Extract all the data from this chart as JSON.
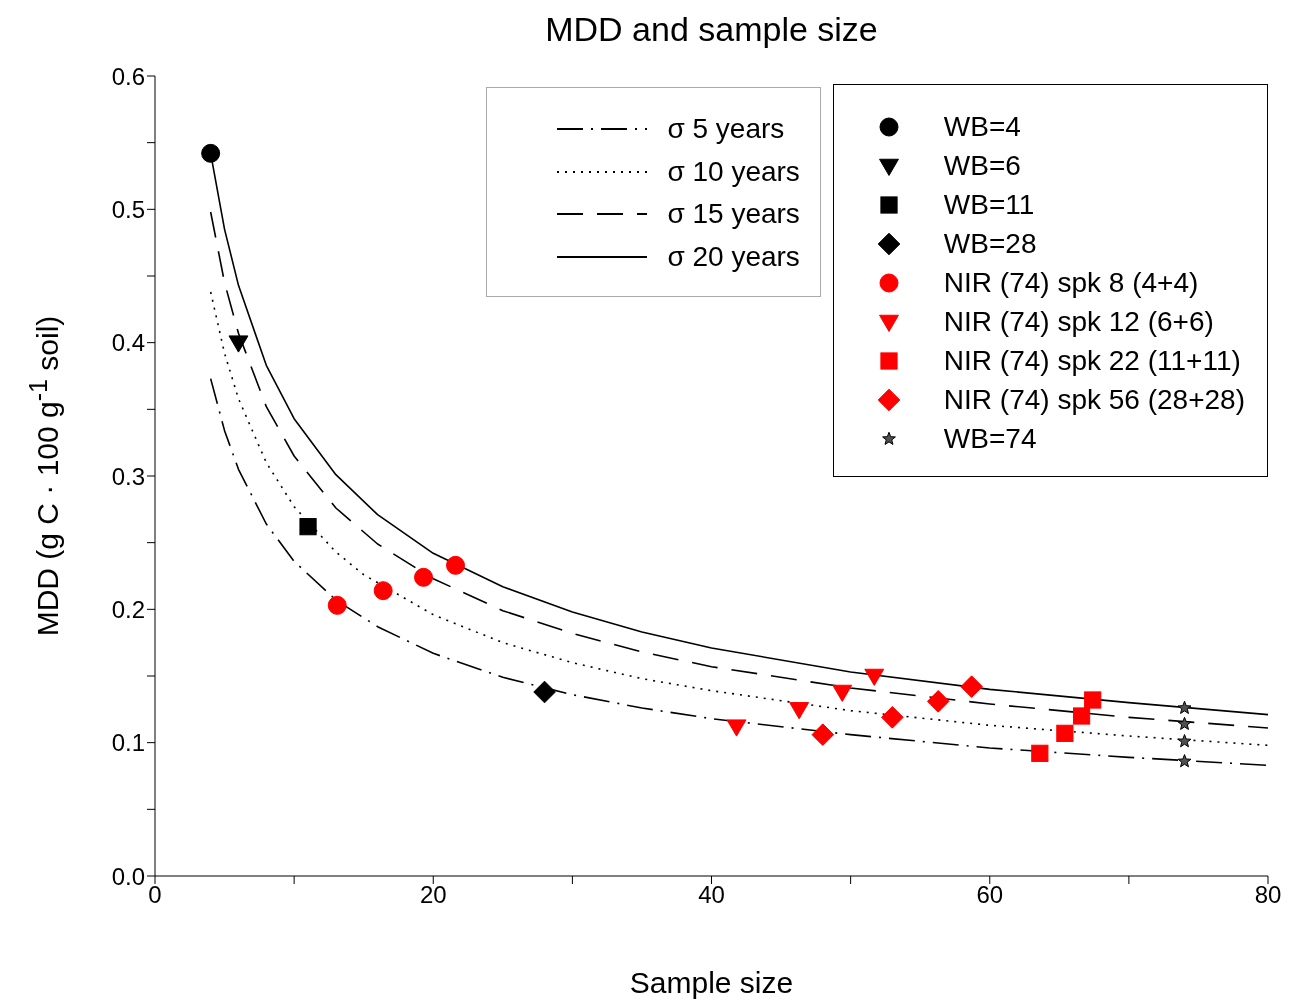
{
  "chart_data": {
    "type": "scatter",
    "title": "MDD and sample size",
    "xlabel": "Sample size",
    "ylabel": "MDD (g C · 100 g$^{-1}$ soil)",
    "xlim": [
      0,
      80
    ],
    "xticks": [
      0,
      {
        "value": 10,
        "label": null
      },
      20,
      {
        "value": 30,
        "label": null
      },
      40,
      {
        "value": 50,
        "label": null
      },
      60,
      {
        "value": 70,
        "label": null
      },
      80
    ],
    "ylim": [
      0,
      0.6
    ],
    "yticks": [
      {
        "value": 0,
        "label": "0.0"
      },
      {
        "value": 0.05,
        "label": null
      },
      {
        "value": 0.1,
        "label": "0.1"
      },
      {
        "value": 0.15,
        "label": null
      },
      {
        "value": 0.2,
        "label": "0.2"
      },
      {
        "value": 0.25,
        "label": null
      },
      {
        "value": 0.3,
        "label": "0.3"
      },
      {
        "value": 0.35,
        "label": null
      },
      {
        "value": 0.4,
        "label": "0.4"
      },
      {
        "value": 0.45,
        "label": null
      },
      {
        "value": 0.5,
        "label": "0.5"
      },
      {
        "value": 0.55,
        "label": null
      },
      {
        "value": 0.6,
        "label": "0.6"
      }
    ],
    "grid": false,
    "legend": "top right",
    "series": [
      {
        "name": "σ 5 years",
        "type": "line",
        "color": "#000000",
        "marker": "none",
        "line_style": "dashdot",
        "x": [
          4,
          5,
          6,
          8,
          10,
          13,
          16,
          20,
          25,
          30,
          35,
          40,
          50,
          60,
          70,
          80
        ],
        "values": [
          0.373,
          0.334,
          0.305,
          0.264,
          0.236,
          0.207,
          0.187,
          0.167,
          0.149,
          0.136,
          0.126,
          0.118,
          0.106,
          0.096,
          0.089,
          0.083
        ]
      },
      {
        "name": "σ 10 years",
        "type": "line",
        "color": "#000000",
        "marker": "none",
        "line_style": "dotted",
        "x": [
          4,
          5,
          6,
          8,
          10,
          13,
          15,
          20,
          25,
          30,
          35,
          40,
          50,
          60,
          70,
          80
        ],
        "values": [
          0.438,
          0.392,
          0.358,
          0.31,
          0.277,
          0.243,
          0.226,
          0.196,
          0.175,
          0.16,
          0.148,
          0.139,
          0.124,
          0.113,
          0.105,
          0.098
        ]
      },
      {
        "name": "σ 15 years",
        "type": "line",
        "color": "#000000",
        "marker": "none",
        "line_style": "dashed",
        "x": [
          4,
          5,
          6,
          8,
          10,
          13,
          16,
          20,
          25,
          30,
          35,
          40,
          50,
          60,
          70,
          80
        ],
        "values": [
          0.498,
          0.445,
          0.407,
          0.352,
          0.315,
          0.276,
          0.249,
          0.223,
          0.199,
          0.182,
          0.168,
          0.157,
          0.141,
          0.129,
          0.119,
          0.111
        ]
      },
      {
        "name": "σ 20 years",
        "type": "line",
        "color": "#000000",
        "marker": "none",
        "line_style": "solid",
        "x": [
          4,
          5,
          6,
          8,
          10,
          13,
          16,
          20,
          25,
          30,
          35,
          40,
          50,
          60,
          70,
          80
        ],
        "values": [
          0.542,
          0.485,
          0.443,
          0.383,
          0.343,
          0.301,
          0.271,
          0.242,
          0.217,
          0.198,
          0.183,
          0.171,
          0.153,
          0.14,
          0.13,
          0.121
        ]
      },
      {
        "name": "WB=4",
        "color": "#000000",
        "marker": "circle",
        "x": [
          4
        ],
        "values": [
          0.542
        ]
      },
      {
        "name": "WB=6",
        "color": "#000000",
        "marker": "triangle",
        "x": [
          6
        ],
        "values": [
          0.4
        ]
      },
      {
        "name": "WB=11",
        "color": "#000000",
        "marker": "square",
        "x": [
          11
        ],
        "values": [
          0.262
        ]
      },
      {
        "name": "WB=28",
        "color": "#000000",
        "marker": "diamond",
        "x": [
          28
        ],
        "values": [
          0.138
        ]
      },
      {
        "name": "NIR (74) spk 8 (4+4)",
        "color": "#ff0000",
        "marker": "circle",
        "x": [
          13.1,
          16.4,
          19.3,
          21.6
        ],
        "values": [
          0.203,
          0.214,
          0.224,
          0.233
        ]
      },
      {
        "name": "NIR (74) spk 12 (6+6)",
        "color": "#ff0000",
        "marker": "triangle",
        "x": [
          41.8,
          46.3,
          49.4,
          51.7
        ],
        "values": [
          0.112,
          0.125,
          0.138,
          0.15
        ]
      },
      {
        "name": "NIR (74) spk 22 (11+11)",
        "color": "#ff0000",
        "marker": "square",
        "x": [
          63.6,
          65.4,
          66.6,
          67.4
        ],
        "values": [
          0.092,
          0.107,
          0.12,
          0.132
        ]
      },
      {
        "name": "NIR (74) spk 56 (28+28)",
        "color": "#ff0000",
        "marker": "diamond",
        "x": [
          48,
          53,
          56.3,
          58.7
        ],
        "values": [
          0.106,
          0.119,
          0.131,
          0.142
        ]
      },
      {
        "name": "WB=74",
        "color": "#505050",
        "marker": "star",
        "x": [
          74,
          74,
          74,
          74
        ],
        "values": [
          0.126,
          0.114,
          0.101,
          0.086
        ]
      }
    ]
  }
}
